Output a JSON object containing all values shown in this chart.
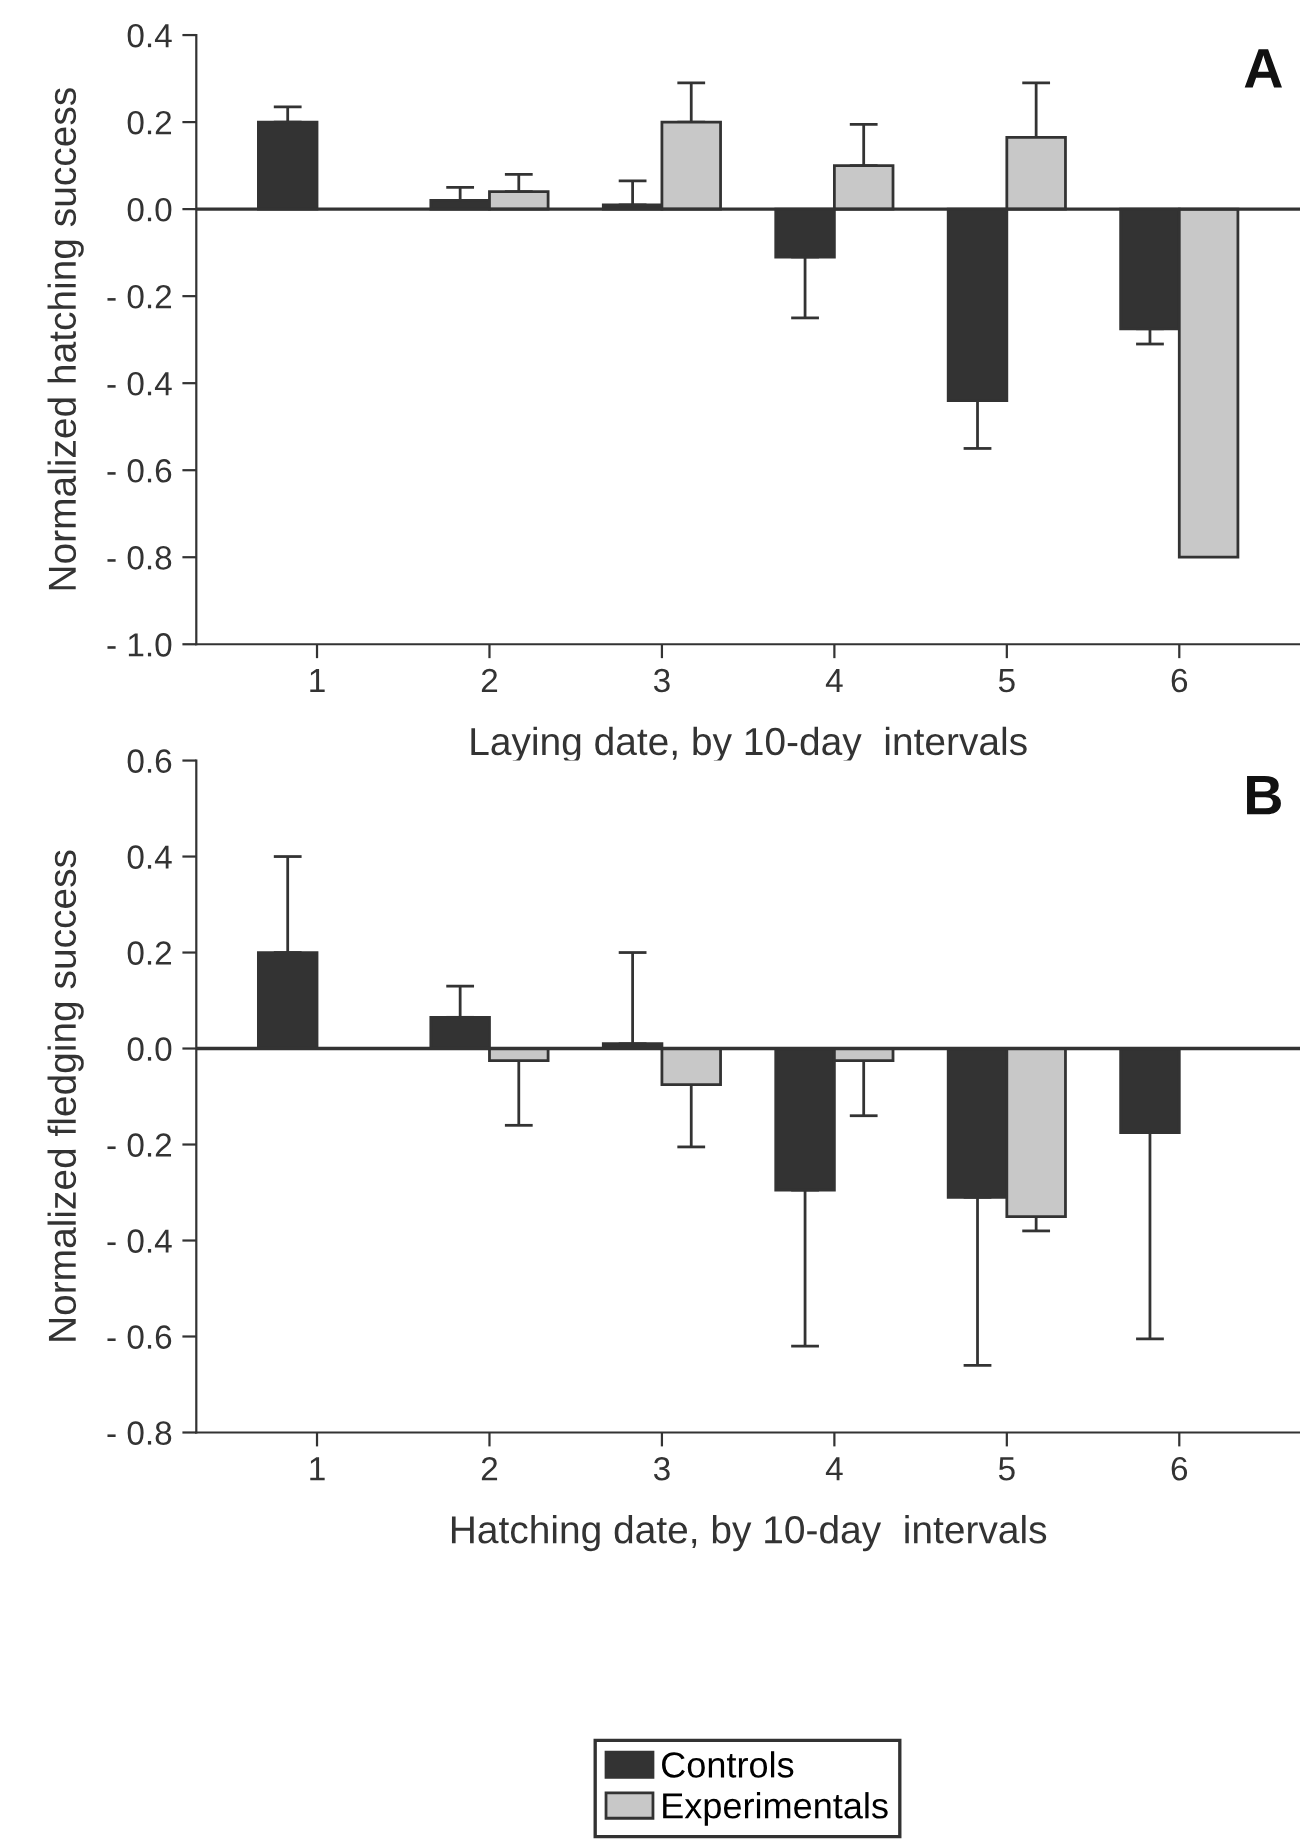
{
  "chart_data": [
    {
      "type": "bar",
      "ylabel": "Normalized hatching success",
      "xlabel": "Laying date, by 10-day  intervals",
      "categories": [
        "1",
        "2",
        "3",
        "4",
        "5",
        "6"
      ],
      "series": [
        {
          "name": "Controls",
          "color": "#333333",
          "values": [
            0.2,
            0.02,
            0.01,
            -0.11,
            -0.44,
            -0.275
          ],
          "errors": [
            [
              0.2,
              0.235
            ],
            [
              0.02,
              0.05
            ],
            [
              0.01,
              0.065
            ],
            [
              -0.25,
              -0.11
            ],
            [
              -0.55,
              -0.44
            ],
            [
              -0.31,
              -0.275
            ]
          ]
        },
        {
          "name": "Experimentals",
          "color": "#c8c8c8",
          "values": [
            null,
            0.04,
            0.2,
            0.1,
            0.165,
            -0.8
          ],
          "errors": [
            null,
            [
              0.04,
              0.08
            ],
            [
              0.2,
              0.29
            ],
            [
              0.1,
              0.195
            ],
            [
              0.165,
              0.29
            ],
            null
          ]
        }
      ],
      "ylim": [
        -1.0,
        0.4
      ],
      "yticks": [
        {
          "value": -1.0,
          "label": "- 1.0"
        },
        {
          "value": -0.8,
          "label": "- 0.8"
        },
        {
          "value": -0.6,
          "label": "- 0.6"
        },
        {
          "value": -0.4,
          "label": "- 0.4"
        },
        {
          "value": -0.2,
          "label": "- 0.2"
        },
        {
          "value": 0.0,
          "label": "0.0"
        },
        {
          "value": 0.2,
          "label": "0.2"
        },
        {
          "value": 0.4,
          "label": "0.4"
        }
      ],
      "ref_lines": [
        {
          "axis": "y",
          "value": 0,
          "color": "#333333"
        }
      ],
      "annotations": [
        "A"
      ],
      "grid": false,
      "legend": "bottom"
    },
    {
      "type": "bar",
      "ylabel": "Normalized fledging success",
      "xlabel": "Hatching date, by 10-day  intervals",
      "categories": [
        "1",
        "2",
        "3",
        "4",
        "5",
        "6"
      ],
      "series": [
        {
          "color": "#333333",
          "values": [
            0.2,
            0.065,
            0.01,
            -0.295,
            -0.31,
            -0.175
          ],
          "errors": [
            [
              0.2,
              0.4
            ],
            [
              0.065,
              0.13
            ],
            [
              0.01,
              0.2
            ],
            [
              -0.62,
              -0.295
            ],
            [
              -0.66,
              -0.31
            ],
            [
              -0.605,
              -0.175
            ]
          ]
        },
        {
          "color": "#c8c8c8",
          "values": [
            null,
            -0.025,
            -0.075,
            -0.025,
            -0.35,
            null
          ],
          "errors": [
            null,
            [
              -0.16,
              -0.025
            ],
            [
              -0.205,
              -0.075
            ],
            [
              -0.14,
              -0.025
            ],
            [
              -0.38,
              -0.35
            ],
            null
          ]
        }
      ],
      "ylim": [
        -0.8,
        0.6
      ],
      "yticks": [
        {
          "value": -0.8,
          "label": "- 0.8"
        },
        {
          "value": -0.6,
          "label": "- 0.6"
        },
        {
          "value": -0.4,
          "label": "- 0.4"
        },
        {
          "value": -0.2,
          "label": "- 0.2"
        },
        {
          "value": 0.0,
          "label": "0.0"
        },
        {
          "value": 0.2,
          "label": "0.2"
        },
        {
          "value": 0.4,
          "label": "0.4"
        },
        {
          "value": 0.6,
          "label": "0.6"
        }
      ],
      "ref_lines": [
        {
          "axis": "y",
          "value": 0,
          "color": "#333333"
        }
      ],
      "annotations": [
        "B"
      ],
      "grid": false
    }
  ]
}
